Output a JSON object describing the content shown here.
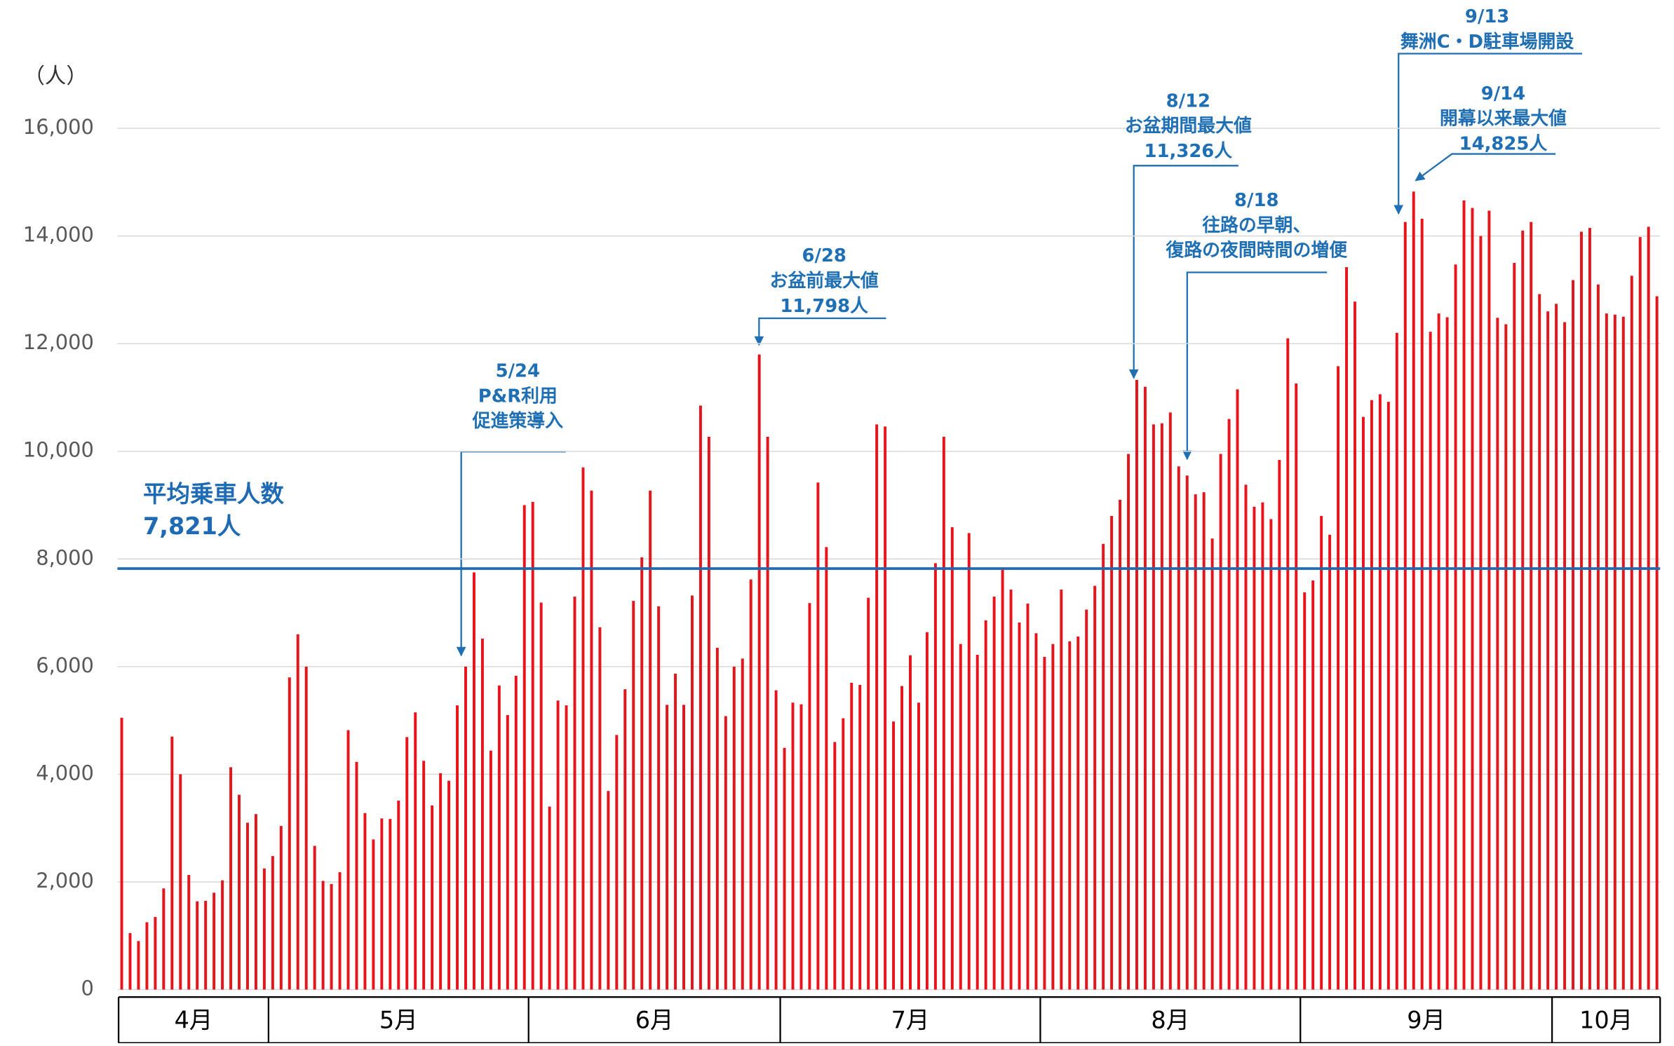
{
  "chart_data": {
    "type": "bar",
    "y_label": "（人）",
    "categories": [
      "4月",
      null,
      null,
      null,
      null,
      null,
      null,
      null,
      null,
      null,
      null,
      null,
      null,
      null,
      null,
      null,
      null,
      null,
      "5月",
      null,
      null,
      null,
      null,
      null,
      null,
      null,
      null,
      null,
      null,
      null,
      null,
      null,
      null,
      null,
      null,
      null,
      null,
      null,
      null,
      null,
      null,
      null,
      null,
      null,
      null,
      null,
      null,
      null,
      null,
      "6月",
      null,
      null,
      null,
      null,
      null,
      null,
      null,
      null,
      null,
      null,
      null,
      null,
      null,
      null,
      null,
      null,
      null,
      null,
      null,
      null,
      null,
      null,
      null,
      null,
      null,
      null,
      null,
      null,
      null,
      "7月",
      null,
      null,
      null,
      null,
      null,
      null,
      null,
      null,
      null,
      null,
      null,
      null,
      null,
      null,
      null,
      null,
      null,
      null,
      null,
      null,
      null,
      null,
      null,
      null,
      null,
      null,
      null,
      null,
      null,
      null,
      "8月",
      null,
      null,
      null,
      null,
      null,
      null,
      null,
      null,
      null,
      null,
      null,
      null,
      null,
      null,
      null,
      null,
      null,
      null,
      null,
      null,
      null,
      null,
      null,
      null,
      null,
      null,
      null,
      null,
      null,
      null,
      "9月",
      null,
      null,
      null,
      null,
      null,
      null,
      null,
      null,
      null,
      null,
      null,
      null,
      null,
      null,
      null,
      null,
      null,
      null,
      null,
      null,
      null,
      null,
      null,
      null,
      null,
      null,
      null,
      null,
      null,
      "10月",
      null,
      null,
      null,
      null,
      null,
      null,
      null,
      null,
      null,
      null,
      null,
      null
    ],
    "values": [
      5050,
      1050,
      900,
      1250,
      1350,
      1880,
      4700,
      4000,
      2130,
      1640,
      1650,
      1800,
      2030,
      4130,
      3620,
      3100,
      3260,
      2250,
      2480,
      3040,
      5800,
      6600,
      6000,
      2670,
      2020,
      1960,
      2180,
      4820,
      4230,
      3280,
      2790,
      3180,
      3170,
      3510,
      4690,
      5150,
      4250,
      3420,
      4020,
      3880,
      5280,
      6000,
      7750,
      6520,
      4440,
      5650,
      5100,
      5830,
      9000,
      9060,
      7190,
      3400,
      5370,
      5280,
      7300,
      9700,
      9270,
      6730,
      3690,
      4730,
      5580,
      7220,
      8030,
      9270,
      7120,
      5290,
      5870,
      5290,
      7320,
      10850,
      10270,
      6350,
      5080,
      6000,
      6150,
      7620,
      11798,
      10270,
      5560,
      4490,
      5330,
      5300,
      7180,
      9420,
      8220,
      4600,
      5040,
      5700,
      5660,
      7280,
      10500,
      10460,
      4980,
      5640,
      6210,
      5330,
      6640,
      7920,
      10270,
      8590,
      6420,
      8480,
      6220,
      6860,
      7300,
      7810,
      7430,
      6820,
      7170,
      6620,
      6180,
      6420,
      7430,
      6470,
      6560,
      7060,
      7500,
      8280,
      8800,
      9100,
      9950,
      11326,
      11200,
      10500,
      10520,
      10720,
      9720,
      9550,
      9200,
      9240,
      8380,
      9950,
      10600,
      11150,
      9380,
      8970,
      9050,
      8740,
      9840,
      12100,
      11260,
      7380,
      7600,
      8800,
      8450,
      11580,
      13420,
      12780,
      10640,
      10950,
      11060,
      10920,
      12200,
      14260,
      14825,
      14320,
      12220,
      12560,
      12490,
      13470,
      14660,
      14520,
      14000,
      14470,
      12480,
      12360,
      13500,
      14100,
      14260,
      12920,
      12600,
      12740,
      12400,
      13180,
      14080,
      14150,
      13100,
      12560,
      12540,
      12500,
      13260,
      13980,
      14170,
      12880
    ],
    "color": "#e8141c",
    "ylim": [
      0,
      16000
    ],
    "yticks": [
      0,
      {
        "value": 2000,
        "label": "2,000"
      },
      {
        "value": 4000,
        "label": "4,000"
      },
      {
        "value": 6000,
        "label": "6,000"
      },
      {
        "value": 8000,
        "label": "8,000"
      },
      {
        "value": 10000,
        "label": "10,000"
      },
      {
        "value": 12000,
        "label": "12,000"
      },
      {
        "value": 14000,
        "label": "14,000"
      },
      {
        "value": 16000,
        "label": "16,000"
      }
    ],
    "grid": true,
    "average": {
      "label": "平均乗車人数",
      "value": 7821,
      "value_label": "7,821人",
      "color": "#1e6ab4"
    },
    "annotations": [
      {
        "lines": [
          "5/24",
          "P&R利用",
          "促進策導入"
        ]
      },
      {
        "lines": [
          "6/28",
          "お盆前最大値",
          "11,798人"
        ]
      },
      {
        "lines": [
          "8/12",
          "お盆期間最大値",
          "11,326人"
        ]
      },
      {
        "lines": [
          "8/18",
          "往路の早朝、",
          "復路の夜間時間の増便"
        ]
      },
      {
        "lines": [
          "9/13",
          "舞洲C・D駐車場開設"
        ]
      },
      {
        "lines": [
          "9/14",
          "開幕以来最大値",
          "14,825人"
        ]
      }
    ]
  }
}
